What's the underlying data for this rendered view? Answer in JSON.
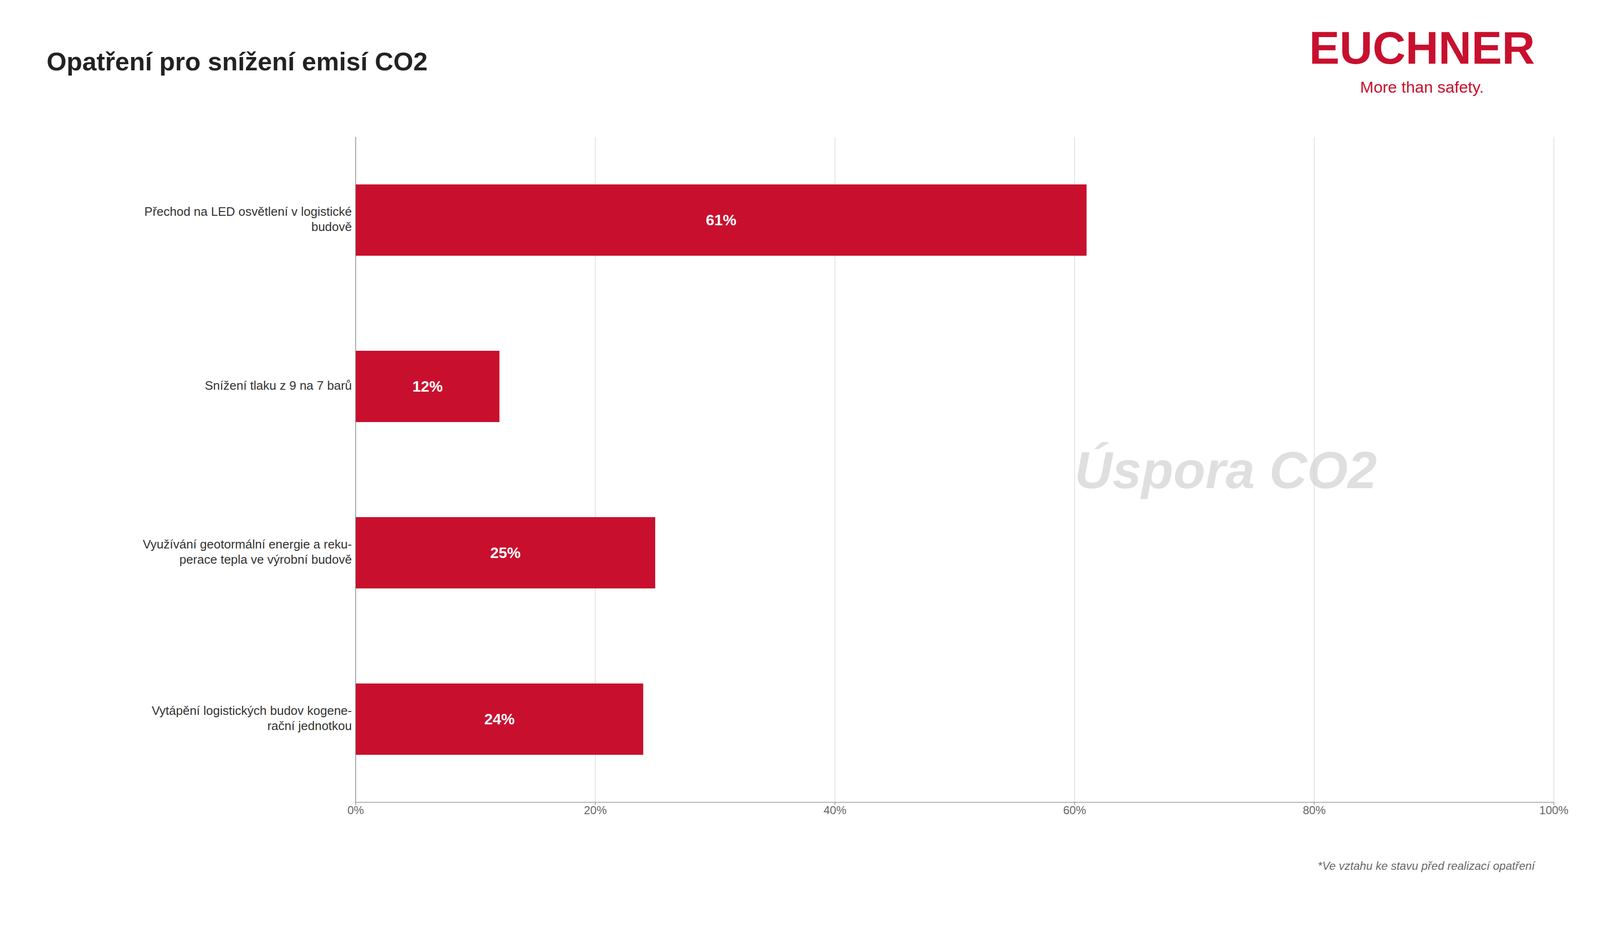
{
  "chart_data": {
    "type": "bar",
    "orientation": "horizontal",
    "title": "Opatření pro snížení emisí CO2",
    "annotations": [
      "Úspora CO2",
      "EUCHNER",
      "More than safety.",
      "*Ve vztahu ke stavu před realizací opatření"
    ],
    "categories": [
      "Přechod na LED osvětlení v logistické\nbudově",
      "Snížení tlaku z 9 na 7 barů",
      "Využívání geotormální energie a reku-\nperace tepla ve výrobní budově",
      "Vytápění logistických budov kogene-\nrační jednotkou"
    ],
    "values": [
      61,
      12,
      25,
      24
    ],
    "value_labels": [
      "61%",
      "12%",
      "25%",
      "24%"
    ],
    "data_labels": true,
    "color": "#c8102e",
    "xlim": [
      0,
      100
    ],
    "xticks": [
      {
        "value": 0,
        "label": "0%"
      },
      {
        "value": 20,
        "label": "20%"
      },
      {
        "value": 40,
        "label": "40%"
      },
      {
        "value": 60,
        "label": "60%"
      },
      {
        "value": 80,
        "label": "80%"
      },
      {
        "value": 100,
        "label": "100%"
      }
    ],
    "grid": true
  }
}
